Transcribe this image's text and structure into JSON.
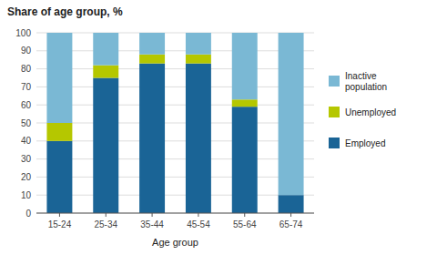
{
  "chart_data": {
    "type": "bar",
    "stacked": true,
    "title": "Share of age group,  %",
    "xlabel": "Age group",
    "categories": [
      "15-24",
      "25-34",
      "35-44",
      "45-54",
      "55-64",
      "65-74"
    ],
    "series": [
      {
        "name": "Employed",
        "color": "#1a6496",
        "values": [
          40,
          75,
          83,
          83,
          59,
          10
        ]
      },
      {
        "name": "Unemployed",
        "color": "#b5c700",
        "values": [
          10,
          7,
          5,
          5,
          4,
          0
        ]
      },
      {
        "name": "Inactive\npopulation",
        "color": "#7ab8d4",
        "values": [
          50,
          18,
          12,
          12,
          37,
          90
        ]
      }
    ],
    "ylim": [
      0,
      100
    ],
    "yticks": [
      0,
      10,
      20,
      30,
      40,
      50,
      60,
      70,
      80,
      90,
      100
    ],
    "grid": true,
    "legend": "right"
  }
}
